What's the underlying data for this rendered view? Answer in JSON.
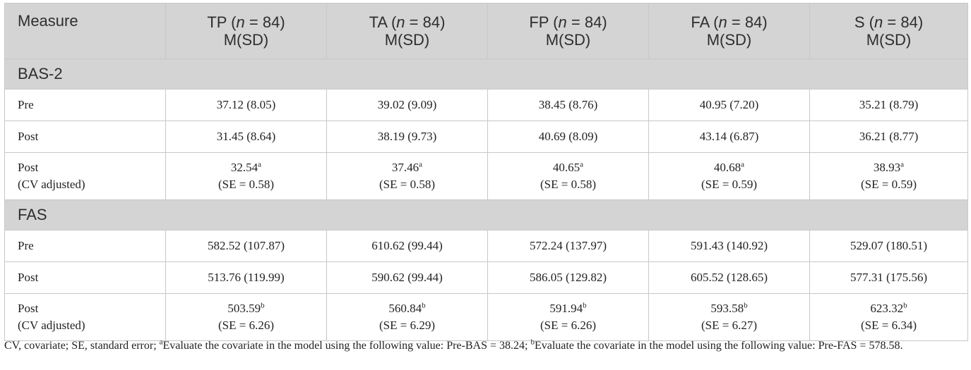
{
  "header": {
    "measure": "Measure",
    "cols": [
      {
        "group": "TP",
        "n_label": "n",
        "n_value": "= 84",
        "stat": "M(SD)"
      },
      {
        "group": "TA",
        "n_label": "n",
        "n_value": "= 84",
        "stat": "M(SD)"
      },
      {
        "group": "FP",
        "n_label": "n",
        "n_value": "= 84",
        "stat": "M(SD)"
      },
      {
        "group": "FA",
        "n_label": "n",
        "n_value": "= 84",
        "stat": "M(SD)"
      },
      {
        "group": "S",
        "n_label": "n",
        "n_value": "= 84",
        "stat": "M(SD)"
      }
    ]
  },
  "sections": [
    {
      "title": "BAS-2",
      "rows": [
        {
          "label": "Pre",
          "values": [
            "37.12 (8.05)",
            "39.02 (9.09)",
            "38.45 (8.76)",
            "40.95 (7.20)",
            "35.21 (8.79)"
          ]
        },
        {
          "label": "Post",
          "values": [
            "31.45 (8.64)",
            "38.19 (9.73)",
            "40.69 (8.09)",
            "43.14 (6.87)",
            "36.21 (8.77)"
          ]
        },
        {
          "label_line1": "Post",
          "label_line2": "(CV adjusted)",
          "means": [
            "32.54",
            "37.46",
            "40.65",
            "40.68",
            "38.93"
          ],
          "sup": "a",
          "se": [
            "(SE = 0.58)",
            "(SE = 0.58)",
            "(SE = 0.58)",
            "(SE = 0.59)",
            "(SE = 0.59)"
          ]
        }
      ]
    },
    {
      "title": "FAS",
      "rows": [
        {
          "label": "Pre",
          "values": [
            "582.52 (107.87)",
            "610.62 (99.44)",
            "572.24 (137.97)",
            "591.43 (140.92)",
            "529.07 (180.51)"
          ]
        },
        {
          "label": "Post",
          "values": [
            "513.76 (119.99)",
            "590.62 (99.44)",
            "586.05 (129.82)",
            "605.52 (128.65)",
            "577.31 (175.56)"
          ]
        },
        {
          "label_line1": "Post",
          "label_line2": "(CV adjusted)",
          "means": [
            "503.59",
            "560.84",
            "591.94",
            "593.58",
            "623.32"
          ],
          "sup": "b",
          "se": [
            "(SE = 6.26)",
            "(SE = 6.29)",
            "(SE = 6.26)",
            "(SE = 6.27)",
            "(SE = 6.34)"
          ]
        }
      ]
    }
  ],
  "footnote": {
    "text1": "CV, covariate; SE, standard error; ",
    "sup_a": "a",
    "text2": "Evaluate the covariate in the model using the following value: Pre-BAS = 38.24; ",
    "sup_b": "b",
    "text3": "Evaluate the covariate in the model using the following value: Pre-FAS = 578.58."
  }
}
